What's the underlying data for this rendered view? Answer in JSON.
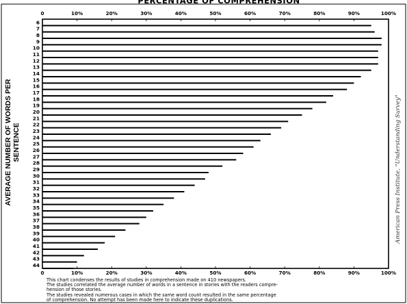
{
  "chart_data": {
    "type": "bar",
    "orientation": "horizontal",
    "title": "PERCENTAGE OF COMPREHENSION",
    "ylabel": "AVERAGE NUMBER OF WORDS PER SENTENCE",
    "x_ticks": [
      "0",
      "10%",
      "20%",
      "30%",
      "40%",
      "50%",
      "60%",
      "70%",
      "80%",
      "90%",
      "100%"
    ],
    "xlim": [
      0,
      100
    ],
    "grid": false,
    "categories": [
      "6",
      "7",
      "8",
      "9",
      "10",
      "11",
      "12",
      "13",
      "14",
      "15",
      "16",
      "17",
      "18",
      "19",
      "20",
      "21",
      "22",
      "23",
      "24",
      "25",
      "26",
      "27",
      "28",
      "29",
      "30",
      "31",
      "32",
      "33",
      "34",
      "35",
      "36",
      "37",
      "38",
      "39",
      "40",
      "41",
      "42",
      "43",
      "44"
    ],
    "values": [
      95,
      96,
      98,
      98,
      97,
      97,
      97,
      95,
      92,
      90,
      88,
      84,
      82,
      78,
      75,
      71,
      69,
      66,
      63,
      61,
      58,
      56,
      52,
      48,
      47,
      44,
      41,
      38,
      35,
      32,
      30,
      28,
      24,
      21,
      18,
      16,
      12,
      10,
      9
    ]
  },
  "side_note": "American Press Institute, \"Understanding Survey\"",
  "footnote": {
    "line1": "This chart condenses the results of studies in comprehension made on 410 newspapers.",
    "line2": "The studies correlated the average number of words in a sentence in stories with the readers compre-",
    "line3": "hension of those stories.",
    "line4": "The studies revealed numerous cases in which the same word count resulted in the same percentage",
    "line5": "of comprehension. No attempt has been made here to indicate these duplications."
  }
}
